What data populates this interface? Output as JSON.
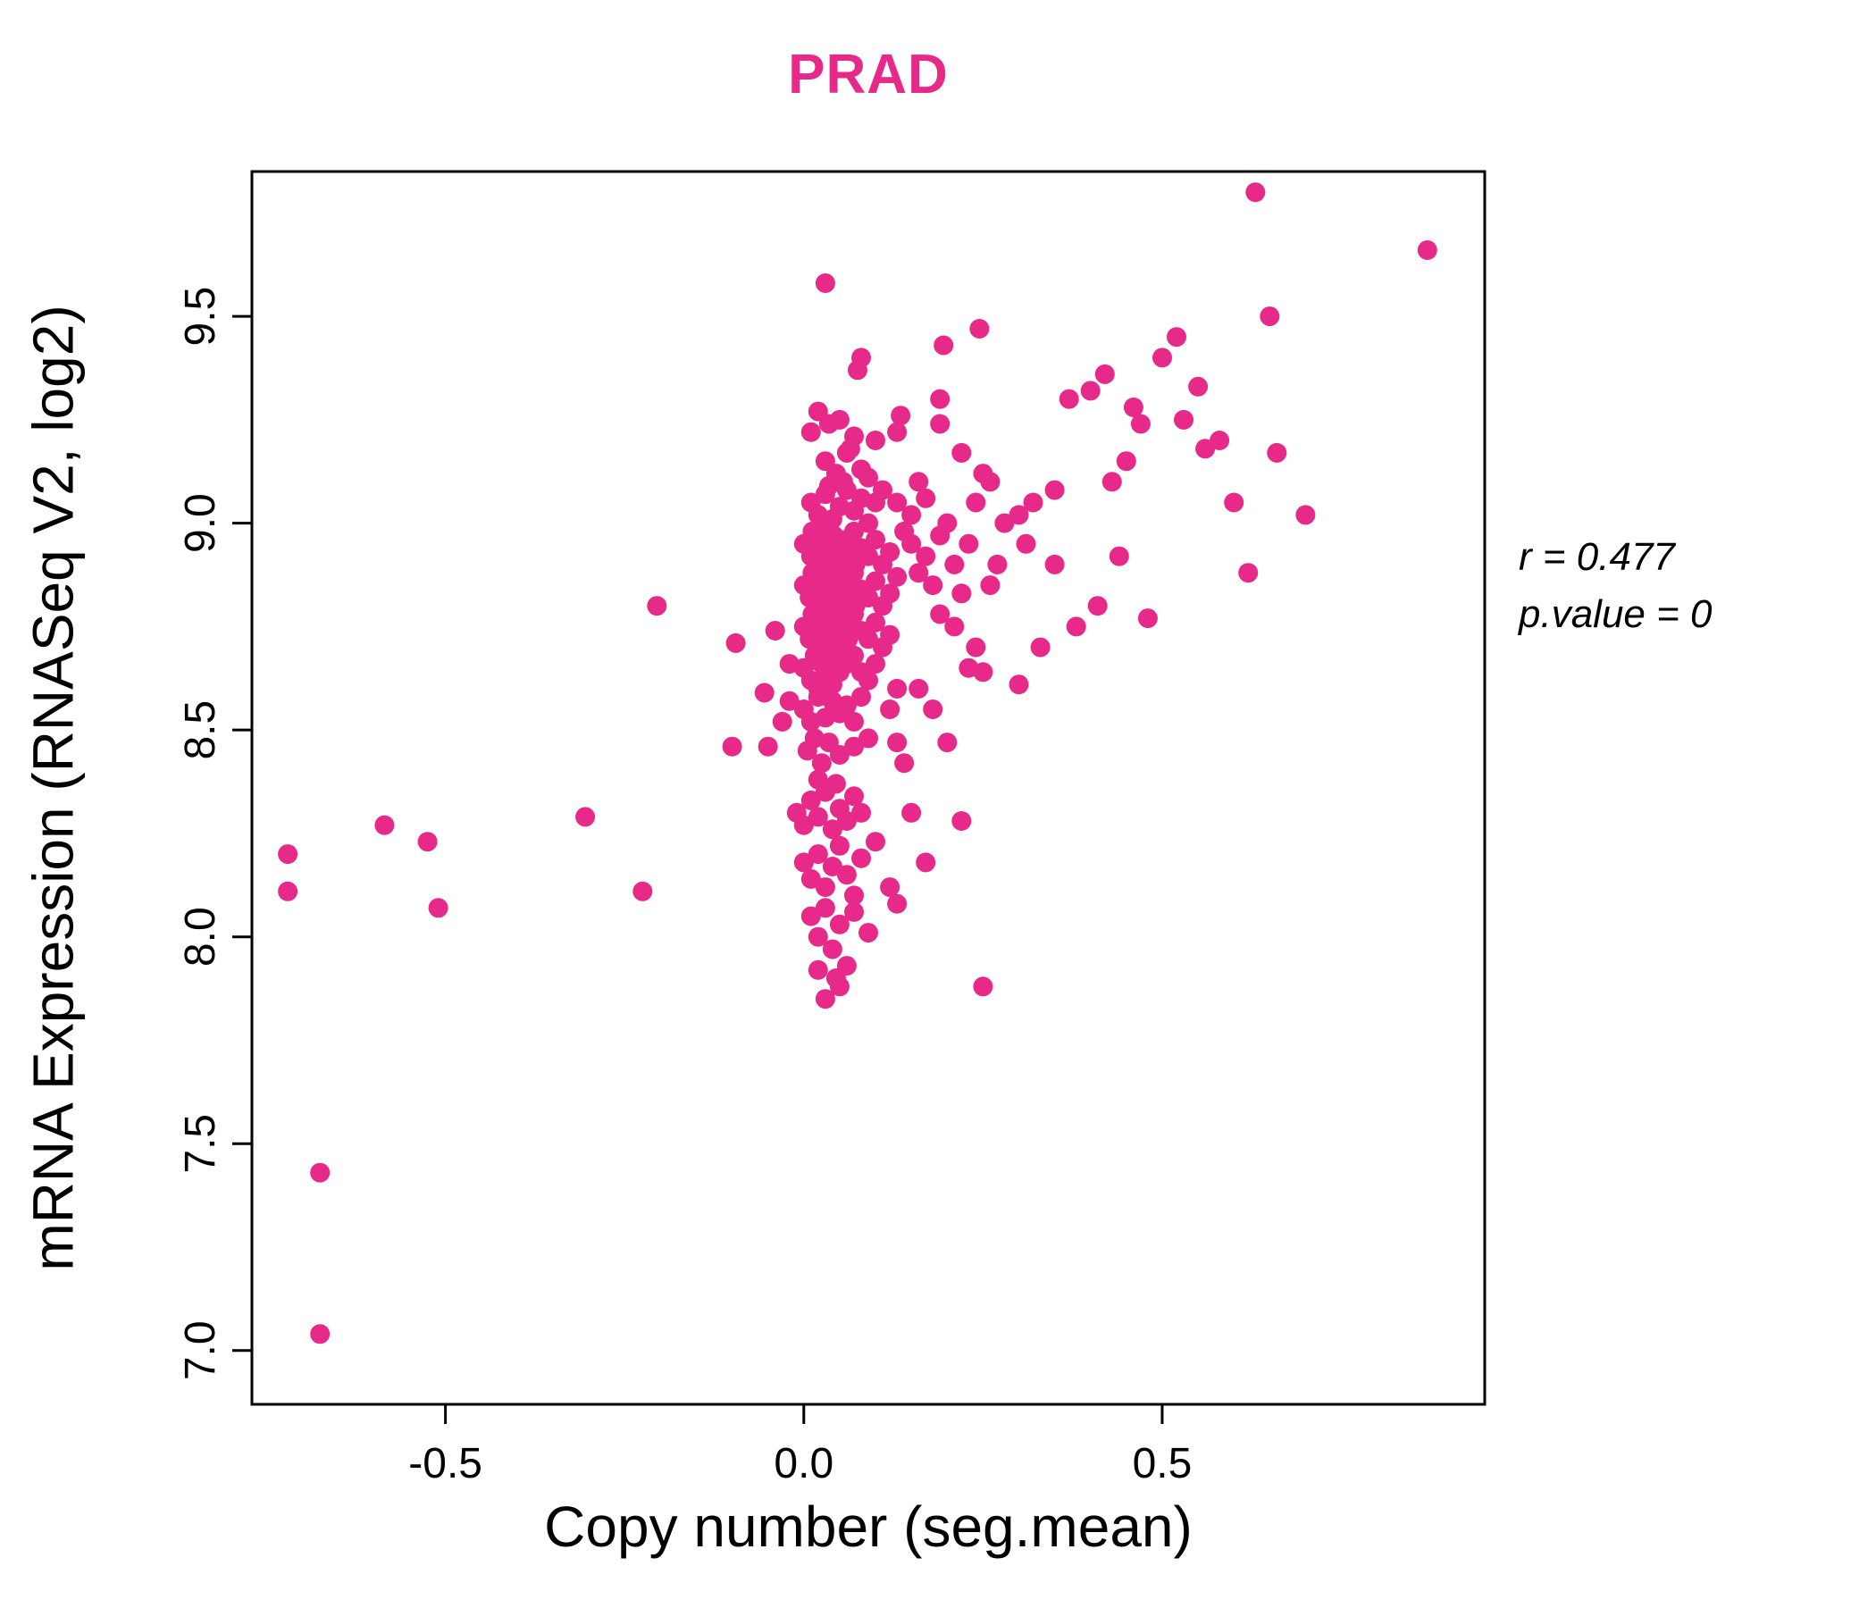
{
  "chart_data": {
    "type": "scatter",
    "title": "PRAD",
    "xlabel": "Copy number (seg.mean)",
    "ylabel": "mRNA Expression (RNASeq V2, log2)",
    "xlim": [
      -0.77,
      0.95
    ],
    "ylim": [
      6.87,
      9.85
    ],
    "grid": false,
    "legend": "none",
    "point_color": "#E7298A",
    "title_color": "#E7298A",
    "axis_color": "#000000",
    "x_ticks": [
      {
        "v": -0.5,
        "label": "-0.5"
      },
      {
        "v": 0.0,
        "label": "0.0"
      },
      {
        "v": 0.5,
        "label": "0.5"
      }
    ],
    "y_ticks": [
      {
        "v": 7.0,
        "label": "7.0"
      },
      {
        "v": 7.5,
        "label": "7.5"
      },
      {
        "v": 8.0,
        "label": "8.0"
      },
      {
        "v": 8.5,
        "label": "8.5"
      },
      {
        "v": 9.0,
        "label": "9.0"
      },
      {
        "v": 9.5,
        "label": "9.5"
      }
    ],
    "annotation": {
      "line1": "r = 0.477",
      "line2": "p.value = 0"
    },
    "points": [
      [
        -0.72,
        8.2
      ],
      [
        -0.72,
        8.11
      ],
      [
        -0.675,
        7.43
      ],
      [
        -0.675,
        7.04
      ],
      [
        -0.585,
        8.27
      ],
      [
        -0.525,
        8.23
      ],
      [
        -0.51,
        8.07
      ],
      [
        -0.305,
        8.29
      ],
      [
        -0.225,
        8.11
      ],
      [
        -0.205,
        8.8
      ],
      [
        -0.095,
        8.71
      ],
      [
        -0.1,
        8.46
      ],
      [
        -0.055,
        8.59
      ],
      [
        -0.04,
        8.74
      ],
      [
        -0.03,
        8.52
      ],
      [
        -0.02,
        8.66
      ],
      [
        0.03,
        9.58
      ],
      [
        0.075,
        9.37
      ],
      [
        0.08,
        9.4
      ],
      [
        0.195,
        9.43
      ],
      [
        0.245,
        9.47
      ],
      [
        0.19,
        9.3
      ],
      [
        0.135,
        9.26
      ],
      [
        0.02,
        9.27
      ],
      [
        0.035,
        9.24
      ],
      [
        0.01,
        9.22
      ],
      [
        0.05,
        9.25
      ],
      [
        0.07,
        9.21
      ],
      [
        0.19,
        9.24
      ],
      [
        0.03,
        9.15
      ],
      [
        0.045,
        9.12
      ],
      [
        0.06,
        9.17
      ],
      [
        0.055,
        9.1
      ],
      [
        0.08,
        9.13
      ],
      [
        0.09,
        9.11
      ],
      [
        0.065,
        9.18
      ],
      [
        0.22,
        9.17
      ],
      [
        0.25,
        9.12
      ],
      [
        0.1,
        9.2
      ],
      [
        0.13,
        9.22
      ],
      [
        0.01,
        9.05
      ],
      [
        0.02,
        9.02
      ],
      [
        0.03,
        9.07
      ],
      [
        0.04,
        9.01
      ],
      [
        0.05,
        9.04
      ],
      [
        0.06,
        9.08
      ],
      [
        0.07,
        9.03
      ],
      [
        0.08,
        9.06
      ],
      [
        0.09,
        9.0
      ],
      [
        0.1,
        9.05
      ],
      [
        0.035,
        9.09
      ],
      [
        0.15,
        9.02
      ],
      [
        0.17,
        9.06
      ],
      [
        0.24,
        9.05
      ],
      [
        0.26,
        9.1
      ],
      [
        0.11,
        9.08
      ],
      [
        0.13,
        9.05
      ],
      [
        0.0,
        8.95
      ],
      [
        0.01,
        8.92
      ],
      [
        0.012,
        8.98
      ],
      [
        0.02,
        8.9
      ],
      [
        0.022,
        8.96
      ],
      [
        0.03,
        8.93
      ],
      [
        0.032,
        8.99
      ],
      [
        0.04,
        8.91
      ],
      [
        0.042,
        8.97
      ],
      [
        0.05,
        8.94
      ],
      [
        0.052,
        8.9
      ],
      [
        0.06,
        8.96
      ],
      [
        0.062,
        8.92
      ],
      [
        0.07,
        8.98
      ],
      [
        0.072,
        8.9
      ],
      [
        0.08,
        8.94
      ],
      [
        0.09,
        8.92
      ],
      [
        0.1,
        8.96
      ],
      [
        0.11,
        8.9
      ],
      [
        0.12,
        8.93
      ],
      [
        0.14,
        8.98
      ],
      [
        0.0,
        8.85
      ],
      [
        0.008,
        8.82
      ],
      [
        0.012,
        8.88
      ],
      [
        0.02,
        8.8
      ],
      [
        0.022,
        8.86
      ],
      [
        0.03,
        8.83
      ],
      [
        0.032,
        8.89
      ],
      [
        0.04,
        8.81
      ],
      [
        0.042,
        8.87
      ],
      [
        0.05,
        8.84
      ],
      [
        0.052,
        8.8
      ],
      [
        0.06,
        8.86
      ],
      [
        0.062,
        8.82
      ],
      [
        0.07,
        8.88
      ],
      [
        0.072,
        8.8
      ],
      [
        0.08,
        8.84
      ],
      [
        0.09,
        8.82
      ],
      [
        0.1,
        8.86
      ],
      [
        0.11,
        8.8
      ],
      [
        0.12,
        8.83
      ],
      [
        0.13,
        8.87
      ],
      [
        0.0,
        8.75
      ],
      [
        0.008,
        8.72
      ],
      [
        0.012,
        8.78
      ],
      [
        0.02,
        8.7
      ],
      [
        0.022,
        8.76
      ],
      [
        0.03,
        8.73
      ],
      [
        0.032,
        8.79
      ],
      [
        0.04,
        8.71
      ],
      [
        0.042,
        8.77
      ],
      [
        0.05,
        8.74
      ],
      [
        0.052,
        8.7
      ],
      [
        0.06,
        8.76
      ],
      [
        0.062,
        8.72
      ],
      [
        0.07,
        8.78
      ],
      [
        0.08,
        8.74
      ],
      [
        0.09,
        8.72
      ],
      [
        0.1,
        8.76
      ],
      [
        0.11,
        8.7
      ],
      [
        0.12,
        8.73
      ],
      [
        0.0,
        8.65
      ],
      [
        0.01,
        8.62
      ],
      [
        0.015,
        8.68
      ],
      [
        0.02,
        8.6
      ],
      [
        0.025,
        8.66
      ],
      [
        0.03,
        8.63
      ],
      [
        0.035,
        8.69
      ],
      [
        0.04,
        8.61
      ],
      [
        0.045,
        8.67
      ],
      [
        0.05,
        8.64
      ],
      [
        0.06,
        8.66
      ],
      [
        0.07,
        8.68
      ],
      [
        0.08,
        8.64
      ],
      [
        0.09,
        8.62
      ],
      [
        0.1,
        8.66
      ],
      [
        0.13,
        8.6
      ],
      [
        0.0,
        8.55
      ],
      [
        0.01,
        8.52
      ],
      [
        0.02,
        8.58
      ],
      [
        0.03,
        8.53
      ],
      [
        0.04,
        8.57
      ],
      [
        0.05,
        8.54
      ],
      [
        0.06,
        8.56
      ],
      [
        0.07,
        8.52
      ],
      [
        0.08,
        8.58
      ],
      [
        -0.02,
        8.57
      ],
      [
        0.12,
        8.55
      ],
      [
        0.005,
        8.45
      ],
      [
        0.015,
        8.48
      ],
      [
        0.025,
        8.42
      ],
      [
        0.035,
        8.47
      ],
      [
        0.05,
        8.44
      ],
      [
        0.07,
        8.46
      ],
      [
        0.09,
        8.48
      ],
      [
        -0.05,
        8.46
      ],
      [
        0.13,
        8.47
      ],
      [
        0.14,
        8.42
      ],
      [
        -0.01,
        8.3
      ],
      [
        0.0,
        8.27
      ],
      [
        0.01,
        8.33
      ],
      [
        0.02,
        8.29
      ],
      [
        0.03,
        8.35
      ],
      [
        0.04,
        8.26
      ],
      [
        0.05,
        8.31
      ],
      [
        0.06,
        8.28
      ],
      [
        0.07,
        8.34
      ],
      [
        0.08,
        8.3
      ],
      [
        0.02,
        8.38
      ],
      [
        0.045,
        8.37
      ],
      [
        0.15,
        8.3
      ],
      [
        0.0,
        8.18
      ],
      [
        0.01,
        8.14
      ],
      [
        0.02,
        8.2
      ],
      [
        0.03,
        8.12
      ],
      [
        0.04,
        8.17
      ],
      [
        0.05,
        8.22
      ],
      [
        0.06,
        8.15
      ],
      [
        0.07,
        8.1
      ],
      [
        0.08,
        8.19
      ],
      [
        0.1,
        8.23
      ],
      [
        0.12,
        8.12
      ],
      [
        0.17,
        8.18
      ],
      [
        0.01,
        8.05
      ],
      [
        0.02,
        8.0
      ],
      [
        0.03,
        8.07
      ],
      [
        0.04,
        7.97
      ],
      [
        0.05,
        8.03
      ],
      [
        0.07,
        8.06
      ],
      [
        0.09,
        8.01
      ],
      [
        0.13,
        8.08
      ],
      [
        0.02,
        7.92
      ],
      [
        0.03,
        7.85
      ],
      [
        0.045,
        7.9
      ],
      [
        0.06,
        7.93
      ],
      [
        0.05,
        7.88
      ],
      [
        0.15,
        8.95
      ],
      [
        0.16,
        8.88
      ],
      [
        0.17,
        8.92
      ],
      [
        0.18,
        8.85
      ],
      [
        0.19,
        8.97
      ],
      [
        0.2,
        9.0
      ],
      [
        0.21,
        8.9
      ],
      [
        0.22,
        8.83
      ],
      [
        0.23,
        8.95
      ],
      [
        0.24,
        8.7
      ],
      [
        0.25,
        8.64
      ],
      [
        0.26,
        8.85
      ],
      [
        0.27,
        8.9
      ],
      [
        0.28,
        9.0
      ],
      [
        0.16,
        8.6
      ],
      [
        0.18,
        8.55
      ],
      [
        0.2,
        8.47
      ],
      [
        0.22,
        8.28
      ],
      [
        0.25,
        7.88
      ],
      [
        0.21,
        8.75
      ],
      [
        0.23,
        8.65
      ],
      [
        0.19,
        8.78
      ],
      [
        0.16,
        9.1
      ],
      [
        0.3,
        9.02
      ],
      [
        0.32,
        9.05
      ],
      [
        0.35,
        9.08
      ],
      [
        0.37,
        9.3
      ],
      [
        0.4,
        9.32
      ],
      [
        0.42,
        9.36
      ],
      [
        0.43,
        9.1
      ],
      [
        0.45,
        9.15
      ],
      [
        0.46,
        9.28
      ],
      [
        0.47,
        9.24
      ],
      [
        0.5,
        9.4
      ],
      [
        0.52,
        9.45
      ],
      [
        0.53,
        9.25
      ],
      [
        0.55,
        9.33
      ],
      [
        0.56,
        9.18
      ],
      [
        0.58,
        9.2
      ],
      [
        0.6,
        9.05
      ],
      [
        0.62,
        8.88
      ],
      [
        0.63,
        9.8
      ],
      [
        0.65,
        9.5
      ],
      [
        0.66,
        9.17
      ],
      [
        0.7,
        9.02
      ],
      [
        0.87,
        9.66
      ],
      [
        0.44,
        8.92
      ],
      [
        0.48,
        8.77
      ],
      [
        0.38,
        8.75
      ],
      [
        0.41,
        8.8
      ],
      [
        0.33,
        8.7
      ],
      [
        0.3,
        8.61
      ],
      [
        0.35,
        8.9
      ],
      [
        0.31,
        8.95
      ]
    ]
  }
}
